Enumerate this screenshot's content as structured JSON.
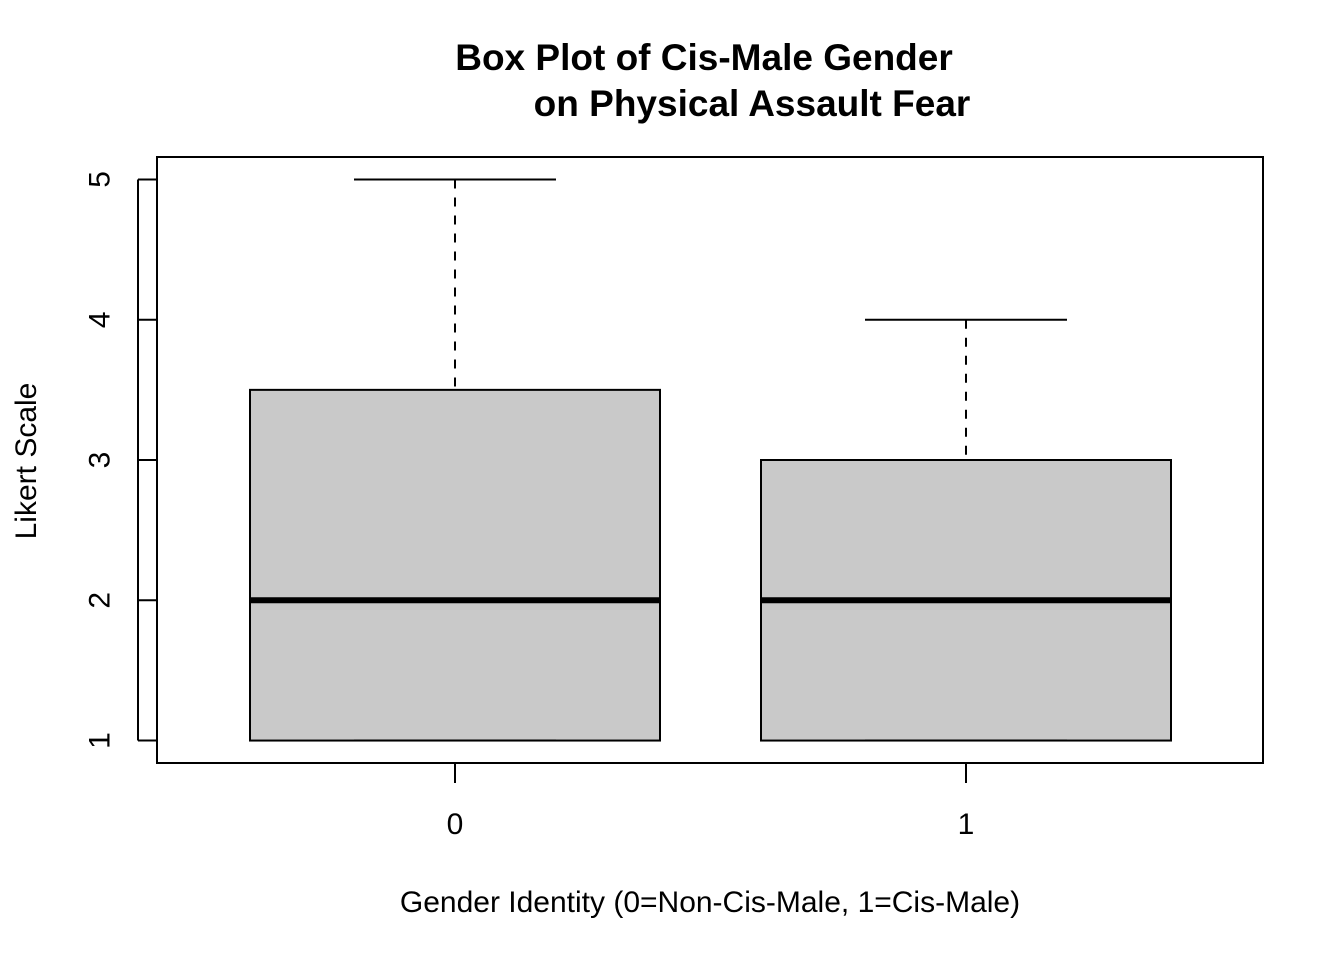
{
  "chart_data": {
    "type": "box",
    "title": {
      "line1": "Box Plot of Cis-Male Gender",
      "line2": "on Physical Assault Fear"
    },
    "xlabel": "Gender Identity (0=Non-Cis-Male, 1=Cis-Male)",
    "ylabel": "Likert Scale",
    "categories": [
      "0",
      "1"
    ],
    "y_ticks": [
      "1",
      "2",
      "3",
      "4",
      "5"
    ],
    "ylim": [
      0.84,
      5.16
    ],
    "grid": false,
    "legend": "none",
    "boxes": [
      {
        "category": "0",
        "whisker_low": 1,
        "q1": 1,
        "median": 2,
        "q3": 3.5,
        "whisker_high": 5
      },
      {
        "category": "1",
        "whisker_low": 1,
        "q1": 1,
        "median": 2,
        "q3": 3,
        "whisker_high": 4
      }
    ],
    "colors": {
      "box_fill": "#c9c9c9",
      "line": "#000000",
      "background": "#ffffff"
    }
  }
}
